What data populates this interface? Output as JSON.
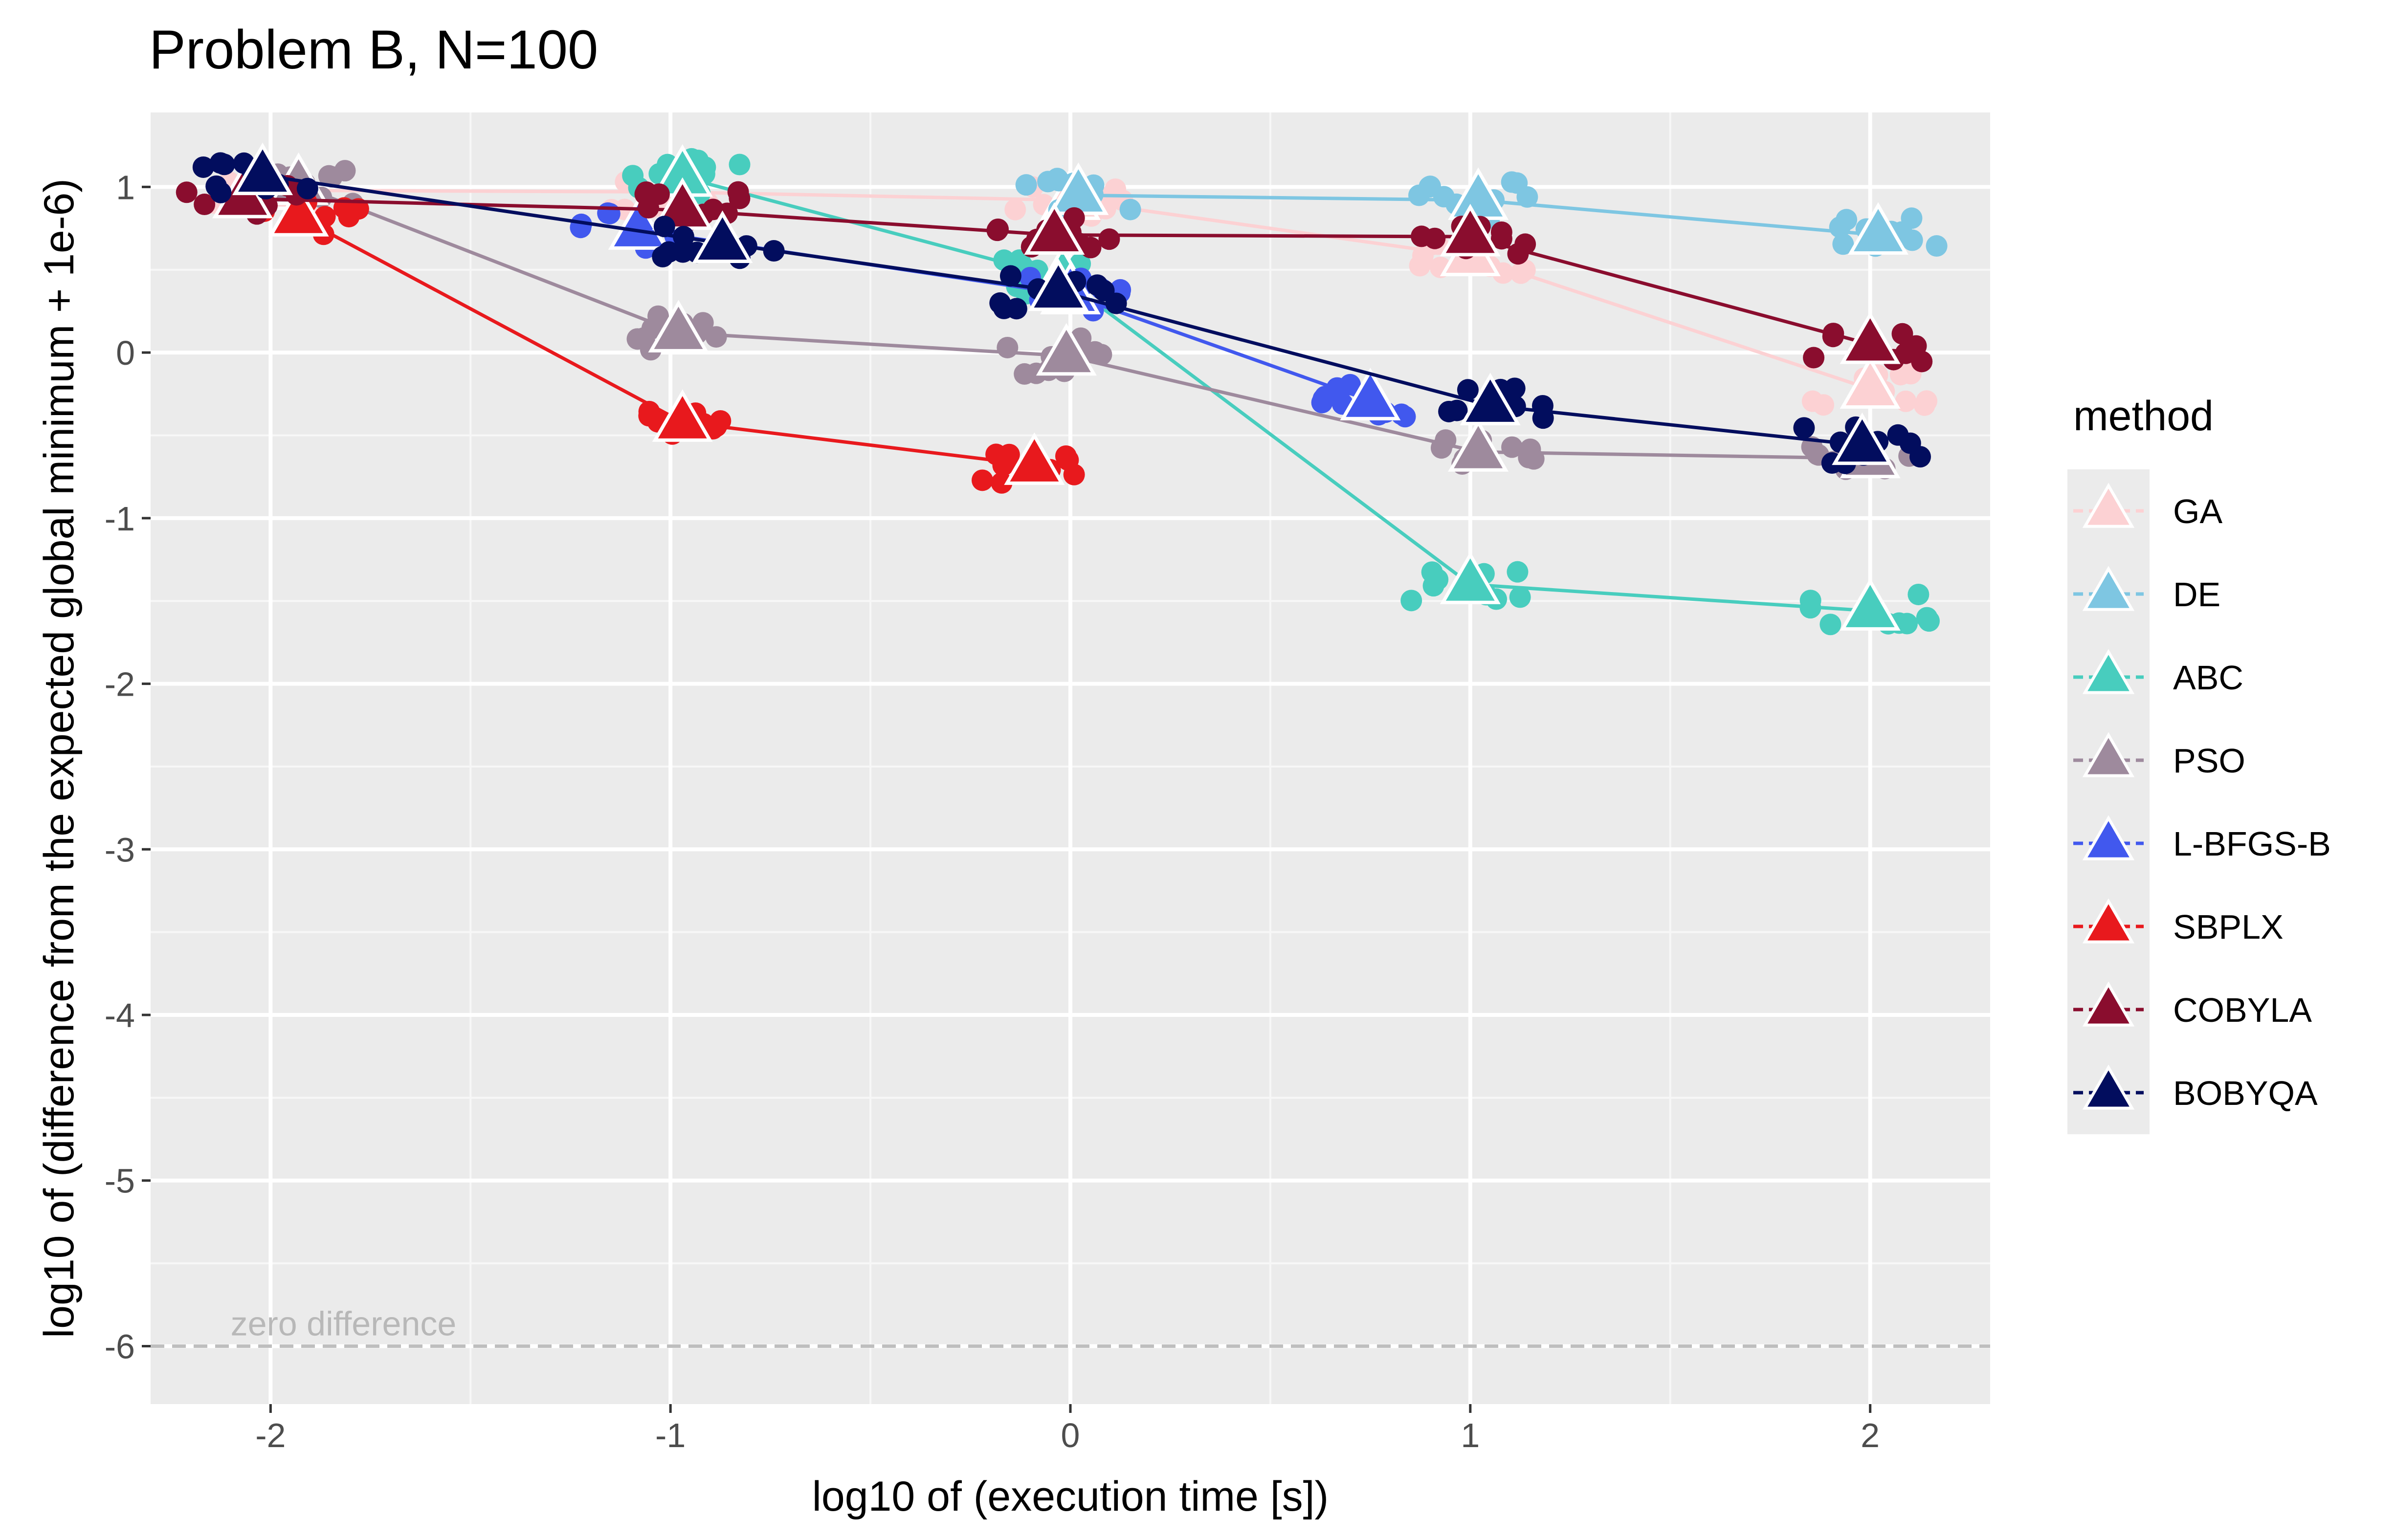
{
  "chart_data": {
    "type": "scatter",
    "title": "Problem B, N=100",
    "xlabel": "log10 of (execution time [s])",
    "ylabel": "log10 of (difference from the expected global minimum + 1e-6)",
    "xlim": [
      -2.3,
      2.3
    ],
    "ylim": [
      -6.35,
      1.45
    ],
    "x_ticks": [
      -2,
      -1,
      0,
      1,
      2
    ],
    "x_tick_labels": [
      "-2",
      "-1",
      "0",
      "1",
      "2"
    ],
    "y_ticks": [
      -6,
      -5,
      -4,
      -3,
      -2,
      -1,
      0,
      1
    ],
    "y_tick_labels": [
      "-6",
      "-5",
      "-4",
      "-3",
      "-2",
      "-1",
      "0",
      "1"
    ],
    "grid": true,
    "panel_background": "#ebebeb",
    "legend": {
      "title": "method",
      "position": "right"
    },
    "reference_line": {
      "y": -6,
      "label": "zero difference",
      "color": "#bebebe"
    },
    "series": [
      {
        "name": "GA",
        "color": "#fcd1d3",
        "x": [
          -2.0,
          -1.0,
          0.0,
          1.0,
          2.0
        ],
        "y": [
          0.98,
          0.97,
          0.92,
          0.58,
          -0.22
        ]
      },
      {
        "name": "DE",
        "color": "#7ec6e2",
        "x": [
          0.02,
          1.02,
          2.02
        ],
        "y": [
          0.95,
          0.92,
          0.71
        ]
      },
      {
        "name": "ABC",
        "color": "#48cdbe",
        "x": [
          -0.97,
          -0.02,
          1.0,
          2.0
        ],
        "y": [
          1.06,
          0.45,
          -1.4,
          -1.56
        ]
      },
      {
        "name": "PSO",
        "color": "#9e8a9d",
        "x": [
          -1.93,
          -0.98,
          -0.01,
          1.02,
          2.0
        ],
        "y": [
          1.01,
          0.12,
          -0.02,
          -0.6,
          -0.64
        ]
      },
      {
        "name": "L-BFGS-B",
        "color": "#4158ee",
        "x": [
          -1.08,
          0.0,
          0.75
        ],
        "y": [
          0.74,
          0.35,
          -0.29
        ]
      },
      {
        "name": "SBPLX",
        "color": "#e8191d",
        "x": [
          -1.93,
          -0.97,
          -0.09
        ],
        "y": [
          0.82,
          -0.42,
          -0.68
        ]
      },
      {
        "name": "COBYLA",
        "color": "#8a0d2e",
        "x": [
          -2.07,
          -0.97,
          -0.04,
          1.0,
          2.0
        ],
        "y": [
          0.93,
          0.86,
          0.71,
          0.7,
          0.05
        ]
      },
      {
        "name": "BOBYQA",
        "color": "#020d5e",
        "x": [
          -2.02,
          -0.87,
          -0.03,
          1.05,
          1.98
        ],
        "y": [
          1.07,
          0.66,
          0.37,
          -0.32,
          -0.56
        ]
      }
    ]
  }
}
